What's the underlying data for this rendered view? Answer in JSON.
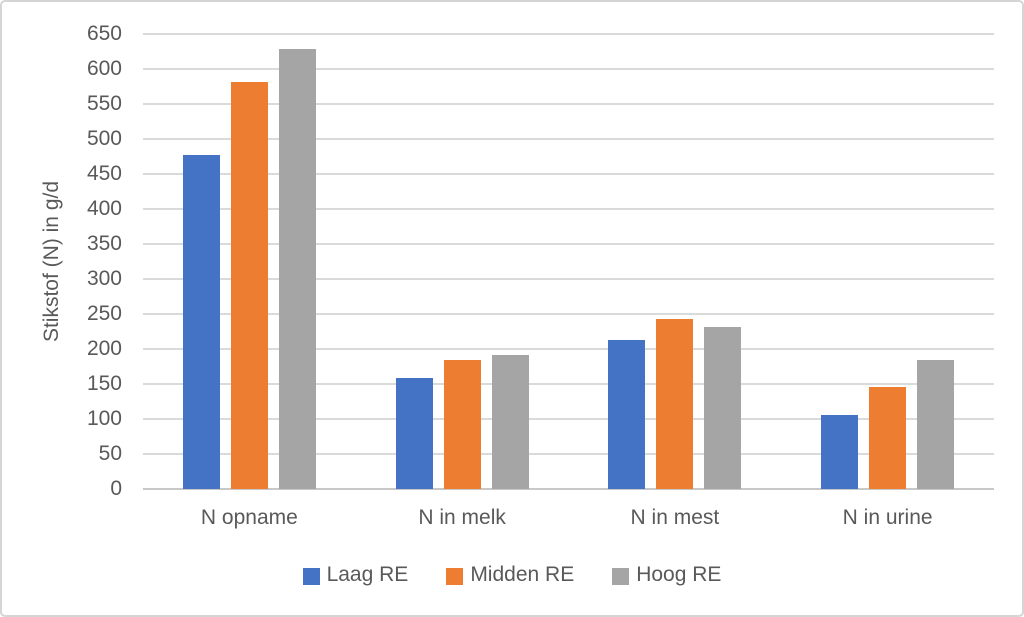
{
  "chart_data": {
    "type": "bar",
    "title": "",
    "xlabel": "",
    "ylabel": "Stikstof (N) in g/d",
    "categories": [
      "N opname",
      "N in melk",
      "N in mest",
      "N in urine"
    ],
    "series": [
      {
        "name": "Laag RE",
        "color": "#4472C4",
        "values": [
          477,
          158,
          213,
          106
        ]
      },
      {
        "name": "Midden RE",
        "color": "#ED7D31",
        "values": [
          582,
          184,
          243,
          146
        ]
      },
      {
        "name": "Hoog RE",
        "color": "#A5A5A5",
        "values": [
          628,
          191,
          231,
          185
        ]
      }
    ],
    "ylim": [
      0,
      650
    ],
    "ytick_step": 50,
    "grid": true,
    "legend_position": "bottom"
  },
  "colors": {
    "gridline": "#dadada",
    "baseline": "#c8c8c8",
    "text": "#595959",
    "frame_border": "#d5d5d5",
    "background": "#ffffff"
  }
}
